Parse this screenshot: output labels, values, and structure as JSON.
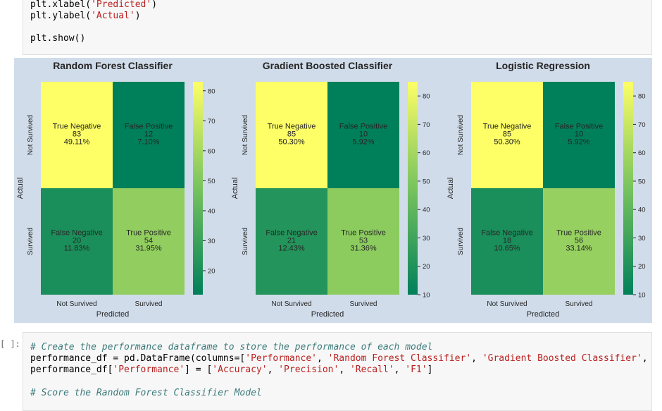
{
  "top_code": {
    "line1_fn": "plt.xlabel(",
    "line1_str": "'Predicted'",
    "line1_end": ")",
    "line2_fn": "plt.ylabel(",
    "line2_str": "'Actual'",
    "line2_end": ")",
    "line3": "plt.show()"
  },
  "bottom_cell": {
    "prompt": "[ ]:",
    "comment1": "# Create the performance dataframe to store the performance of each model",
    "line2_a": "performance_df = pd.DataFrame(columns=[",
    "line2_s1": "'Performance'",
    "line2_s2": "'Random Forest Classifier'",
    "line2_s3": "'Gradient Boosted Classifier'",
    "line3_a": "performance_df[",
    "line3_s1": "'Performance'",
    "line3_b": "] = [",
    "line3_s2": "'Accuracy'",
    "line3_s3": "'Precision'",
    "line3_s4": "'Recall'",
    "line3_s5": "'F1'",
    "line3_c": "]",
    "comment2": "# Score the Random Forest Classifier Model"
  },
  "colors": {
    "cmap_low": "#00805a",
    "cmap_mid": "#78c35e",
    "cmap_high": "#fefe66",
    "figure_bg": "#d0dcea"
  },
  "chart_data": [
    {
      "type": "heatmap",
      "title": "Random Forest Classifier",
      "xlabel": "Predicted",
      "ylabel": "Actual",
      "x_categories": [
        "Not Survived",
        "Survived"
      ],
      "y_categories": [
        "Not Survived",
        "Survived"
      ],
      "cells": [
        {
          "name": "True Negative",
          "count": "83",
          "pct": "49.11%",
          "value": 83
        },
        {
          "name": "False Positive",
          "count": "12",
          "pct": "7.10%",
          "value": 12
        },
        {
          "name": "False Negative",
          "count": "20",
          "pct": "11.83%",
          "value": 20
        },
        {
          "name": "True Positive",
          "count": "54",
          "pct": "31.95%",
          "value": 54
        }
      ],
      "vmin": 12,
      "vmax": 83,
      "colorbar_ticks": [
        "20",
        "30",
        "40",
        "50",
        "60",
        "70",
        "80"
      ]
    },
    {
      "type": "heatmap",
      "title": "Gradient Boosted Classifier",
      "xlabel": "Predicted",
      "ylabel": "Actual",
      "x_categories": [
        "Not Survived",
        "Survived"
      ],
      "y_categories": [
        "Not Survived",
        "Survived"
      ],
      "cells": [
        {
          "name": "True Negative",
          "count": "85",
          "pct": "50.30%",
          "value": 85
        },
        {
          "name": "False Positive",
          "count": "10",
          "pct": "5.92%",
          "value": 10
        },
        {
          "name": "False Negative",
          "count": "21",
          "pct": "12.43%",
          "value": 21
        },
        {
          "name": "True Positive",
          "count": "53",
          "pct": "31.36%",
          "value": 53
        }
      ],
      "vmin": 10,
      "vmax": 85,
      "colorbar_ticks": [
        "10",
        "20",
        "30",
        "40",
        "50",
        "60",
        "70",
        "80"
      ]
    },
    {
      "type": "heatmap",
      "title": "Logistic Regression",
      "xlabel": "Predicted",
      "ylabel": "Actual",
      "x_categories": [
        "Not Survived",
        "Survived"
      ],
      "y_categories": [
        "Not Survived",
        "Survived"
      ],
      "cells": [
        {
          "name": "True Negative",
          "count": "85",
          "pct": "50.30%",
          "value": 85
        },
        {
          "name": "False Positive",
          "count": "10",
          "pct": "5.92%",
          "value": 10
        },
        {
          "name": "False Negative",
          "count": "18",
          "pct": "10.65%",
          "value": 18
        },
        {
          "name": "True Positive",
          "count": "56",
          "pct": "33.14%",
          "value": 56
        }
      ],
      "vmin": 10,
      "vmax": 85,
      "colorbar_ticks": [
        "10",
        "20",
        "30",
        "40",
        "50",
        "60",
        "70",
        "80"
      ]
    }
  ]
}
